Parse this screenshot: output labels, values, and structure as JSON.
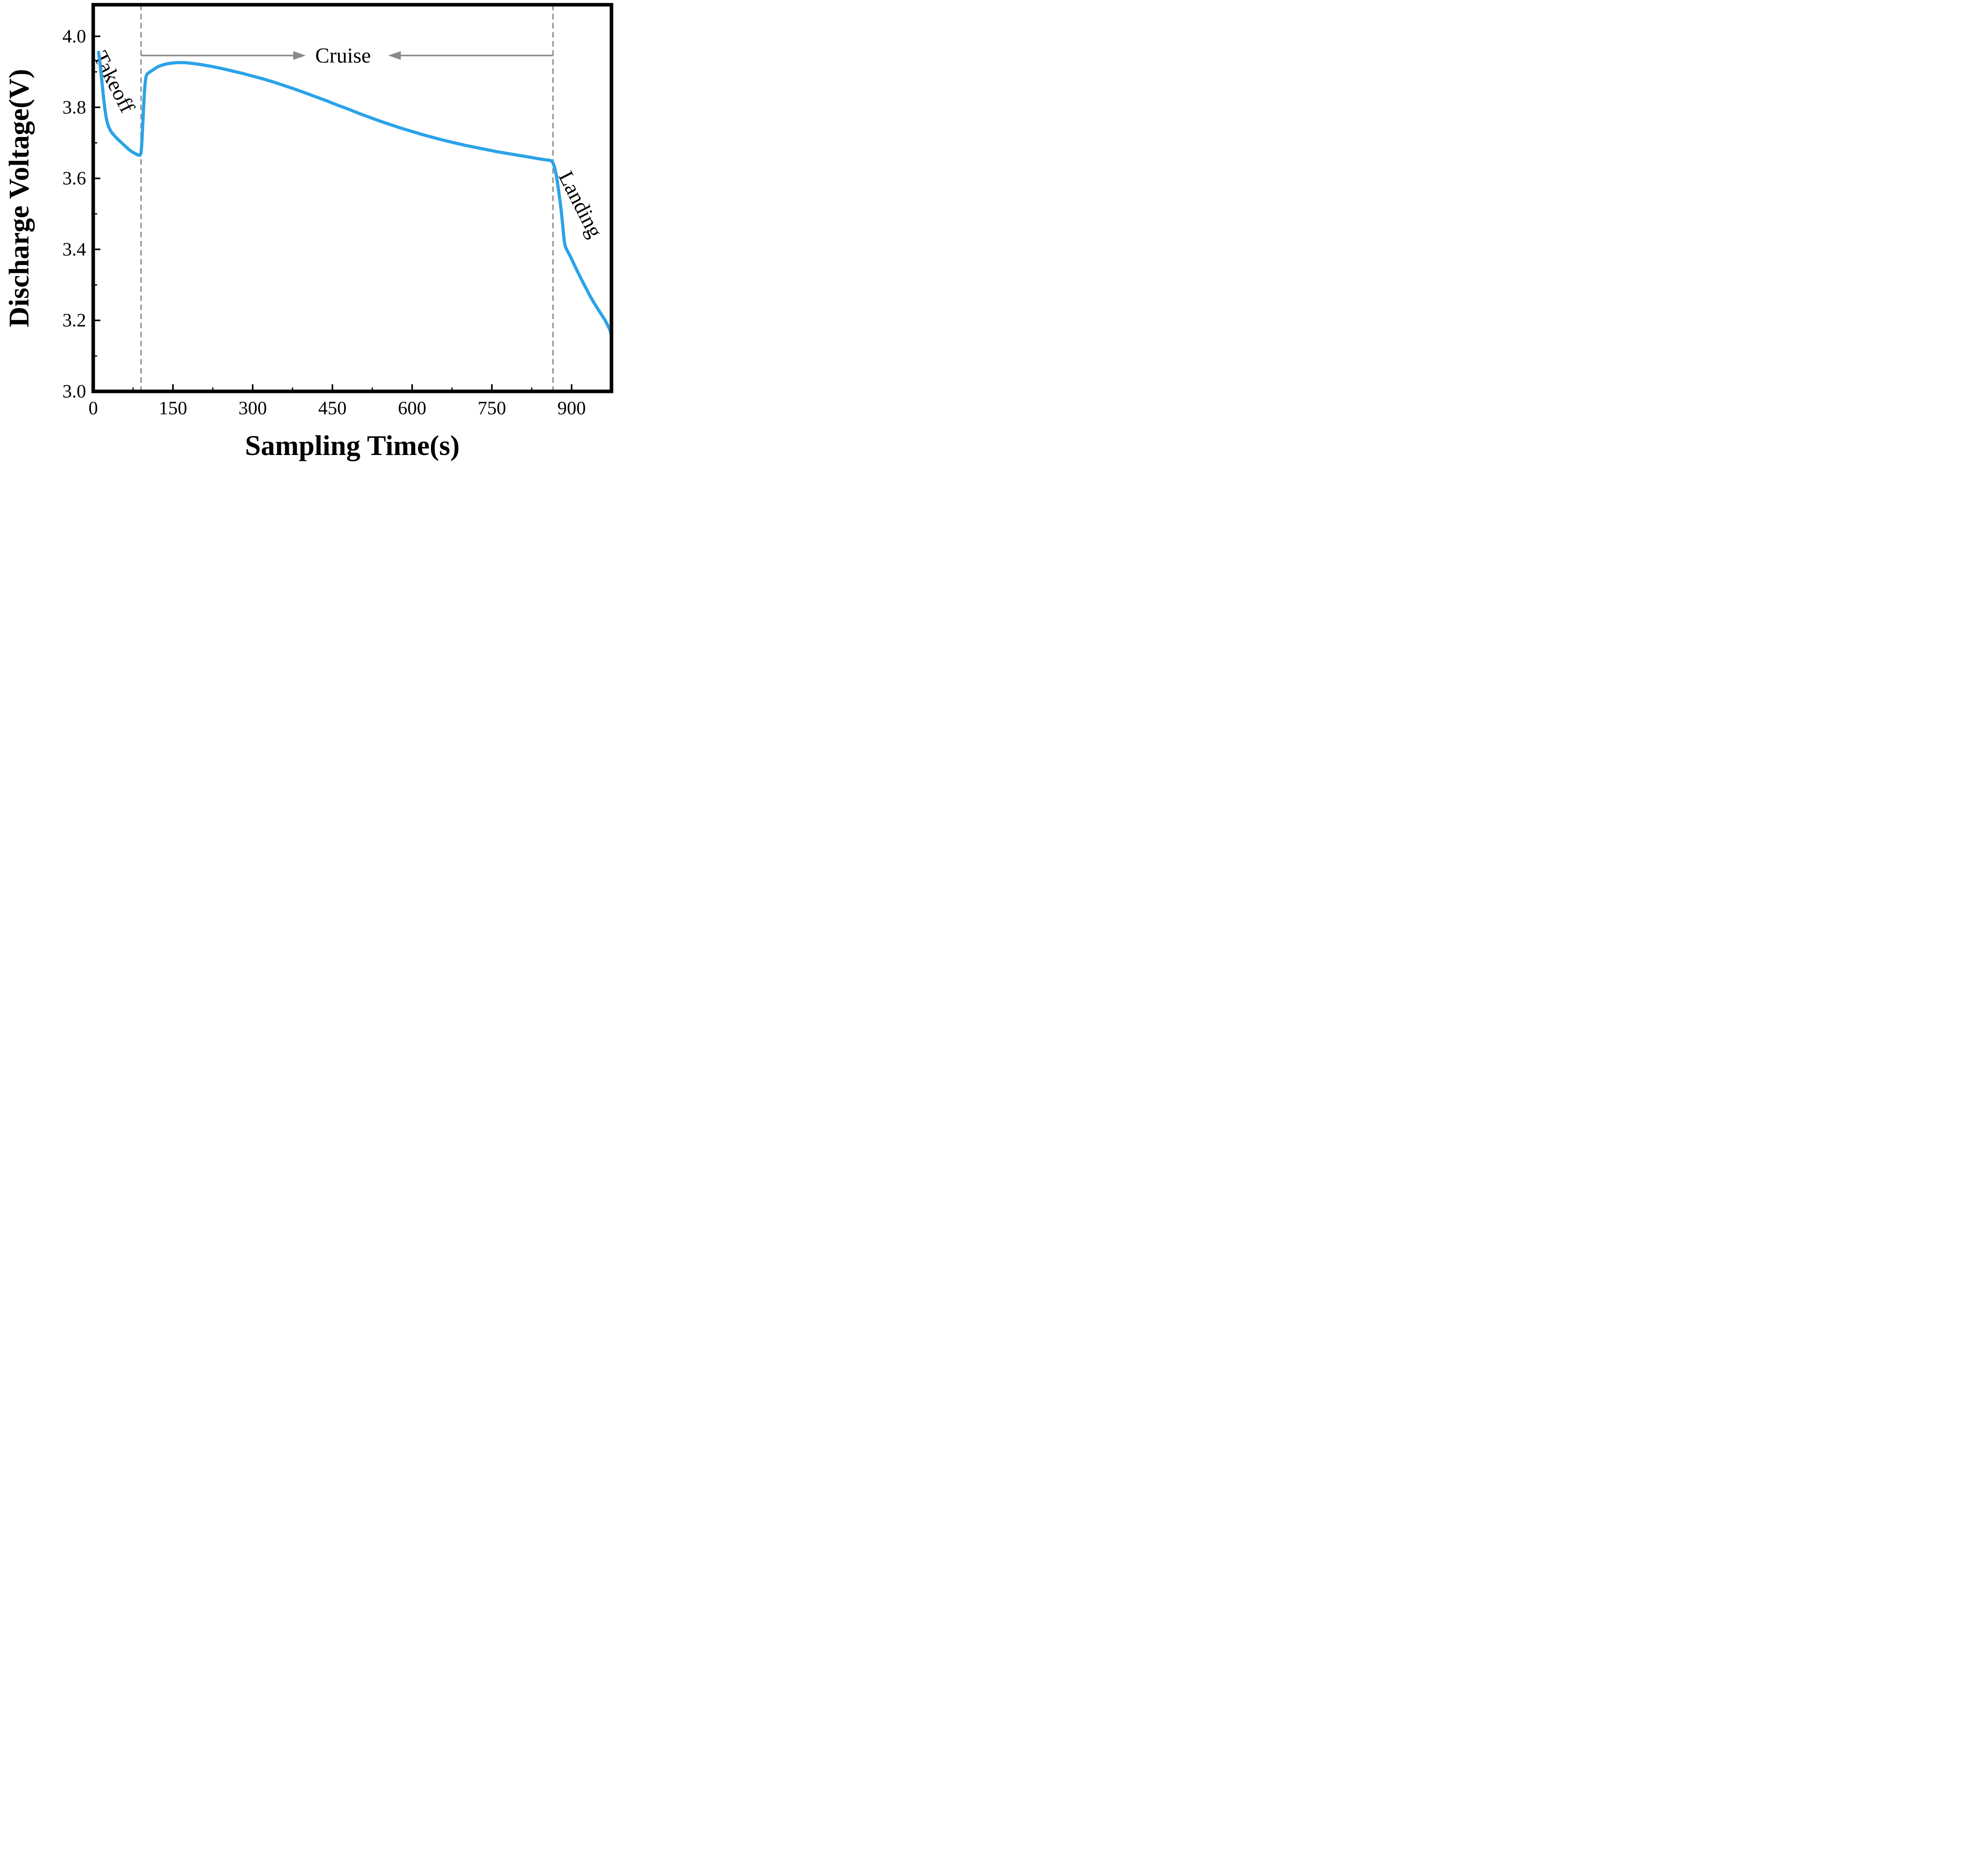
{
  "chart_data": {
    "type": "line",
    "title": "",
    "xlabel": "Sampling Time(s)",
    "ylabel": "Discharge Voltage(V)",
    "xlim": [
      0,
      975
    ],
    "ylim": [
      3.0,
      4.089
    ],
    "grid": false,
    "legend": "none",
    "xtick_values": [
      0,
      150,
      300,
      450,
      600,
      750,
      900
    ],
    "xtick_labels": [
      "0",
      "150",
      "300",
      "450",
      "600",
      "750",
      "900"
    ],
    "ytick_values": [
      3.0,
      3.2,
      3.4,
      3.6,
      3.8,
      4.0
    ],
    "ytick_labels": [
      "3.0",
      "3.2",
      "3.4",
      "3.6",
      "3.8",
      "4.0"
    ],
    "xminor_values": [
      75,
      225,
      375,
      525,
      675,
      825
    ],
    "yminor_values": [
      3.1,
      3.3,
      3.5,
      3.7,
      3.9
    ],
    "line_color": "#2BA3E8",
    "phase_line_color": "#999999",
    "arrow_color": "#8A8A8A",
    "phase_lines": [
      90,
      865
    ],
    "annotations": [
      {
        "id": "takeoff-label",
        "text": "Takeoff",
        "x": 39,
        "y": 3.872,
        "rotation": 63
      },
      {
        "id": "cruise-label",
        "text": "Cruise",
        "x": 470,
        "y": 3.946,
        "rotation": 0
      },
      {
        "id": "landing-label",
        "text": "Landing",
        "x": 917,
        "y": 3.527,
        "rotation": 63
      }
    ],
    "arrows": [
      {
        "x_start": 90,
        "x_end": 400,
        "y": 3.946,
        "head": "right"
      },
      {
        "x_start": 865,
        "x_end": 555,
        "y": 3.946,
        "head": "left"
      }
    ],
    "series": [
      {
        "name": "discharge-voltage-curve",
        "points": [
          [
            10,
            3.955
          ],
          [
            12,
            3.935
          ],
          [
            14,
            3.908
          ],
          [
            16,
            3.878
          ],
          [
            18,
            3.848
          ],
          [
            20,
            3.82
          ],
          [
            22,
            3.795
          ],
          [
            24,
            3.775
          ],
          [
            26,
            3.76
          ],
          [
            28,
            3.75
          ],
          [
            30,
            3.742
          ],
          [
            33,
            3.733
          ],
          [
            36,
            3.727
          ],
          [
            40,
            3.72
          ],
          [
            45,
            3.712
          ],
          [
            50,
            3.705
          ],
          [
            55,
            3.698
          ],
          [
            60,
            3.691
          ],
          [
            65,
            3.684
          ],
          [
            70,
            3.678
          ],
          [
            75,
            3.673
          ],
          [
            80,
            3.669
          ],
          [
            84,
            3.666
          ],
          [
            88,
            3.665
          ],
          [
            90,
            3.672
          ],
          [
            91,
            3.69
          ],
          [
            92,
            3.715
          ],
          [
            93,
            3.745
          ],
          [
            94,
            3.775
          ],
          [
            95,
            3.805
          ],
          [
            96,
            3.832
          ],
          [
            97,
            3.855
          ],
          [
            98,
            3.872
          ],
          [
            99,
            3.883
          ],
          [
            100,
            3.89
          ],
          [
            102,
            3.895
          ],
          [
            105,
            3.898
          ],
          [
            108,
            3.901
          ],
          [
            112,
            3.905
          ],
          [
            116,
            3.909
          ],
          [
            120,
            3.913
          ],
          [
            126,
            3.917
          ],
          [
            132,
            3.92
          ],
          [
            140,
            3.923
          ],
          [
            150,
            3.925
          ],
          [
            160,
            3.926
          ],
          [
            172,
            3.926
          ],
          [
            185,
            3.924
          ],
          [
            200,
            3.921
          ],
          [
            220,
            3.916
          ],
          [
            240,
            3.91
          ],
          [
            260,
            3.903
          ],
          [
            280,
            3.896
          ],
          [
            300,
            3.888
          ],
          [
            320,
            3.88
          ],
          [
            340,
            3.871
          ],
          [
            360,
            3.861
          ],
          [
            380,
            3.851
          ],
          [
            400,
            3.84
          ],
          [
            420,
            3.829
          ],
          [
            440,
            3.818
          ],
          [
            460,
            3.806
          ],
          [
            480,
            3.795
          ],
          [
            500,
            3.783
          ],
          [
            520,
            3.772
          ],
          [
            540,
            3.761
          ],
          [
            560,
            3.751
          ],
          [
            580,
            3.741
          ],
          [
            600,
            3.732
          ],
          [
            620,
            3.723
          ],
          [
            640,
            3.715
          ],
          [
            660,
            3.707
          ],
          [
            680,
            3.7
          ],
          [
            700,
            3.693
          ],
          [
            720,
            3.687
          ],
          [
            740,
            3.681
          ],
          [
            760,
            3.675
          ],
          [
            780,
            3.67
          ],
          [
            800,
            3.665
          ],
          [
            820,
            3.66
          ],
          [
            835,
            3.656
          ],
          [
            848,
            3.653
          ],
          [
            858,
            3.651
          ],
          [
            863,
            3.649
          ],
          [
            866,
            3.64
          ],
          [
            869,
            3.625
          ],
          [
            871,
            3.61
          ],
          [
            873,
            3.592
          ],
          [
            875,
            3.572
          ],
          [
            877,
            3.55
          ],
          [
            879,
            3.527
          ],
          [
            881,
            3.502
          ],
          [
            883,
            3.472
          ],
          [
            885,
            3.44
          ],
          [
            887,
            3.415
          ],
          [
            889,
            3.405
          ],
          [
            892,
            3.396
          ],
          [
            896,
            3.385
          ],
          [
            900,
            3.373
          ],
          [
            905,
            3.357
          ],
          [
            910,
            3.341
          ],
          [
            916,
            3.323
          ],
          [
            922,
            3.305
          ],
          [
            928,
            3.288
          ],
          [
            935,
            3.268
          ],
          [
            942,
            3.25
          ],
          [
            949,
            3.233
          ],
          [
            956,
            3.217
          ],
          [
            962,
            3.203
          ],
          [
            968,
            3.186
          ],
          [
            971,
            3.177
          ],
          [
            974,
            3.164
          ],
          [
            975,
            3.155
          ]
        ]
      }
    ]
  }
}
